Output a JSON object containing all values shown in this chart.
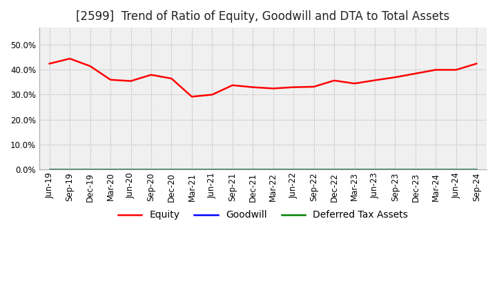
{
  "title": "[2599]  Trend of Ratio of Equity, Goodwill and DTA to Total Assets",
  "x_labels": [
    "Jun-19",
    "Sep-19",
    "Dec-19",
    "Mar-20",
    "Jun-20",
    "Sep-20",
    "Dec-20",
    "Mar-21",
    "Jun-21",
    "Sep-21",
    "Dec-21",
    "Mar-22",
    "Jun-22",
    "Sep-22",
    "Dec-22",
    "Mar-23",
    "Jun-23",
    "Sep-23",
    "Dec-23",
    "Mar-24",
    "Jun-24",
    "Sep-24"
  ],
  "equity": [
    0.425,
    0.445,
    0.415,
    0.36,
    0.355,
    0.38,
    0.365,
    0.292,
    0.3,
    0.338,
    0.33,
    0.325,
    0.33,
    0.332,
    0.357,
    0.345,
    0.358,
    0.37,
    0.385,
    0.4,
    0.4,
    0.425
  ],
  "goodwill": [
    0.0,
    0.0,
    0.0,
    0.0,
    0.0,
    0.0,
    0.0,
    0.0,
    0.0,
    0.0,
    0.0,
    0.0,
    0.0,
    0.0,
    0.0,
    0.0,
    0.0,
    0.0,
    0.0,
    0.0,
    0.0,
    0.0
  ],
  "dta": [
    0.0,
    0.0,
    0.0,
    0.0,
    0.0,
    0.0,
    0.0,
    0.0,
    0.0,
    0.0,
    0.0,
    0.0,
    0.0,
    0.0,
    0.0,
    0.0,
    0.0,
    0.0,
    0.0,
    0.0,
    0.0,
    0.0
  ],
  "equity_color": "#ff0000",
  "goodwill_color": "#0000ff",
  "dta_color": "#008000",
  "ylim": [
    0.0,
    0.57
  ],
  "yticks": [
    0.0,
    0.1,
    0.2,
    0.3,
    0.4,
    0.5
  ],
  "background_color": "#ffffff",
  "plot_bg_color": "#f0f0f0",
  "grid_color": "#aaaaaa",
  "title_fontsize": 12,
  "tick_fontsize": 8.5,
  "legend_fontsize": 10
}
